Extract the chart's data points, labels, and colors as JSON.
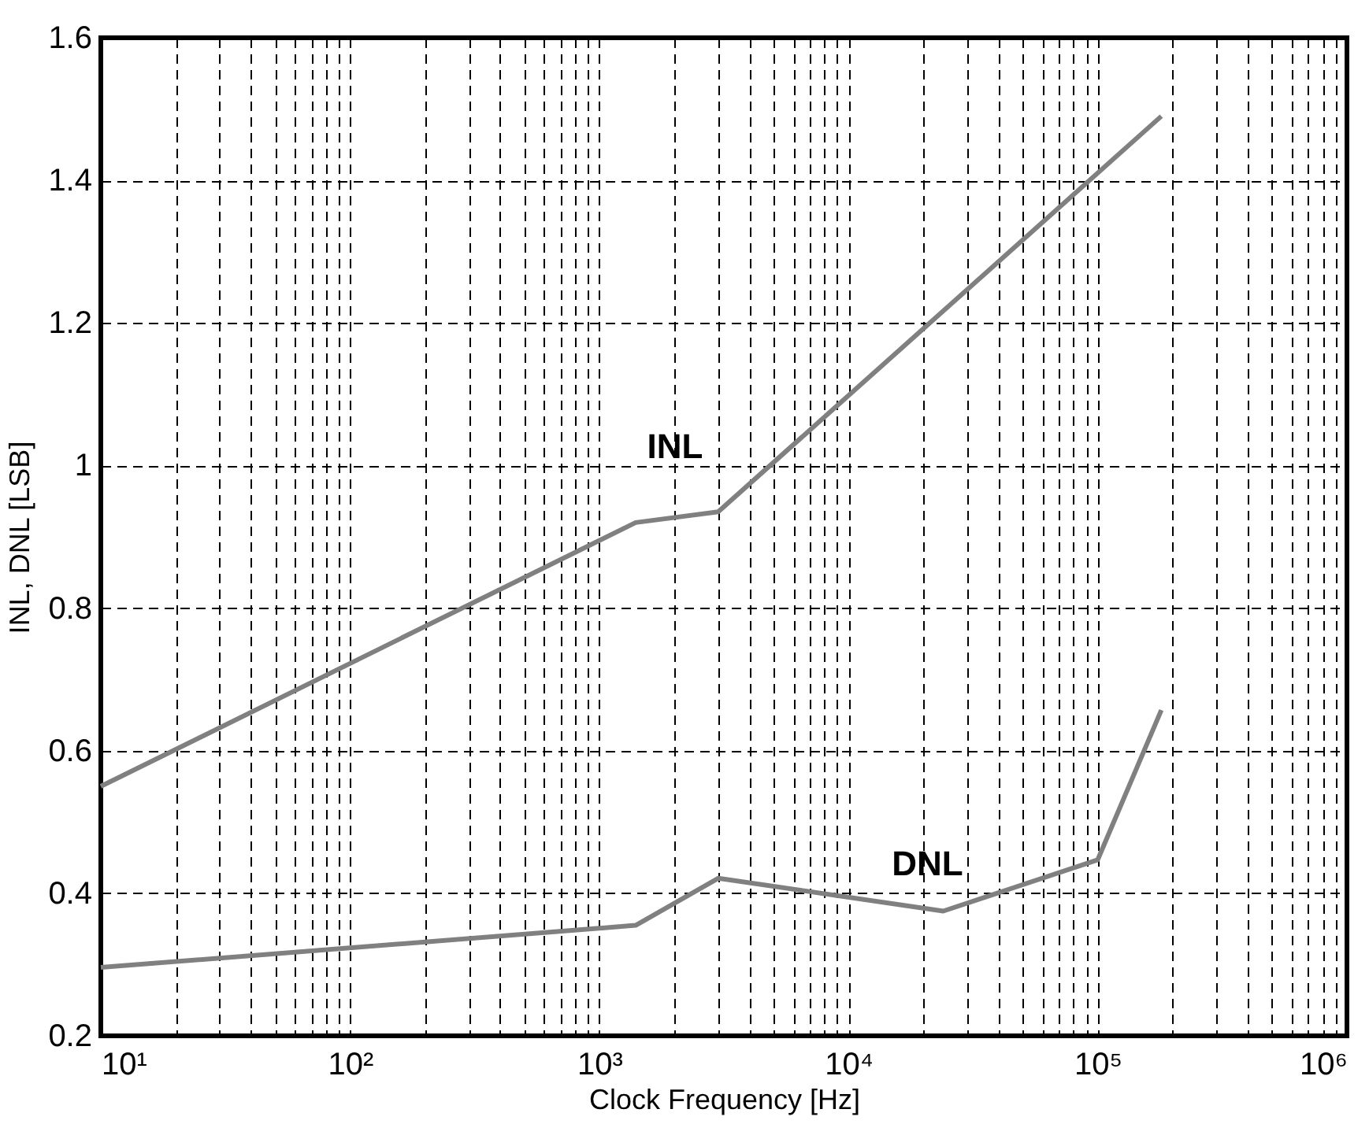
{
  "chart_data": {
    "type": "line",
    "xlabel": "Clock Frequency [Hz]",
    "ylabel": "INL, DNL [LSB]",
    "log": "x",
    "grid": true,
    "line_style": "solid",
    "marker": "none",
    "xlim": [
      10,
      1000000
    ],
    "ylim": [
      0.2,
      1.6
    ],
    "xticks": [
      {
        "value": 10,
        "label": "10¹"
      },
      {
        "value": 20,
        "label": null
      },
      {
        "value": 30,
        "label": null
      },
      {
        "value": 40,
        "label": null
      },
      {
        "value": 50,
        "label": null
      },
      {
        "value": 60,
        "label": null
      },
      {
        "value": 70,
        "label": null
      },
      {
        "value": 80,
        "label": null
      },
      {
        "value": 90,
        "label": null
      },
      {
        "value": 100,
        "label": "10²"
      },
      {
        "value": 200,
        "label": null
      },
      {
        "value": 300,
        "label": null
      },
      {
        "value": 400,
        "label": null
      },
      {
        "value": 500,
        "label": null
      },
      {
        "value": 600,
        "label": null
      },
      {
        "value": 700,
        "label": null
      },
      {
        "value": 800,
        "label": null
      },
      {
        "value": 900,
        "label": null
      },
      {
        "value": 1000,
        "label": "10³"
      },
      {
        "value": 2000,
        "label": null
      },
      {
        "value": 3000,
        "label": null
      },
      {
        "value": 4000,
        "label": null
      },
      {
        "value": 5000,
        "label": null
      },
      {
        "value": 6000,
        "label": null
      },
      {
        "value": 7000,
        "label": null
      },
      {
        "value": 8000,
        "label": null
      },
      {
        "value": 9000,
        "label": null
      },
      {
        "value": 10000,
        "label": "10⁴"
      },
      {
        "value": 20000,
        "label": null
      },
      {
        "value": 30000,
        "label": null
      },
      {
        "value": 40000,
        "label": null
      },
      {
        "value": 50000,
        "label": null
      },
      {
        "value": 60000,
        "label": null
      },
      {
        "value": 70000,
        "label": null
      },
      {
        "value": 80000,
        "label": null
      },
      {
        "value": 90000,
        "label": null
      },
      {
        "value": 100000,
        "label": "10⁵"
      },
      {
        "value": 200000,
        "label": null
      },
      {
        "value": 300000,
        "label": null
      },
      {
        "value": 400000,
        "label": null
      },
      {
        "value": 500000,
        "label": null
      },
      {
        "value": 600000,
        "label": null
      },
      {
        "value": 700000,
        "label": null
      },
      {
        "value": 800000,
        "label": null
      },
      {
        "value": 900000,
        "label": null
      },
      {
        "value": 1000000,
        "label": "10⁶"
      }
    ],
    "yticks": [
      0.2,
      0.4,
      0.6,
      0.8,
      1,
      1.2,
      1.4,
      1.6
    ],
    "series": [
      {
        "name": "INL",
        "color": "#808080",
        "x": [
          10,
          1400,
          3000,
          180000
        ],
        "values": [
          0.55,
          0.92,
          0.935,
          1.49
        ]
      },
      {
        "name": "DNL",
        "color": "#808080",
        "x": [
          10,
          1400,
          3000,
          24000,
          100000,
          180000
        ],
        "values": [
          0.296,
          0.355,
          0.421,
          0.375,
          0.447,
          0.657
        ]
      }
    ]
  }
}
